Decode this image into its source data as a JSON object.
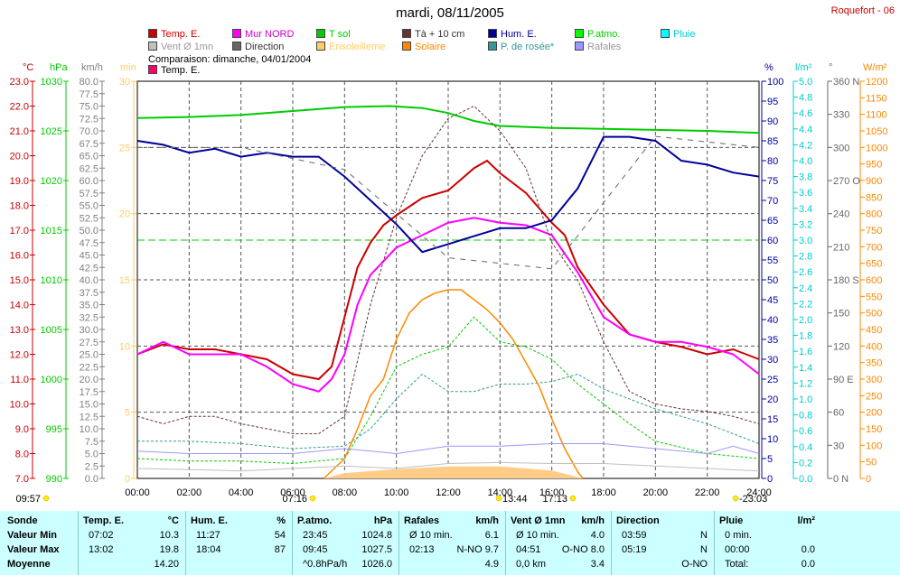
{
  "title": "mardi, 08/11/2005",
  "station": "Roquefort - 06",
  "legend": [
    {
      "label": "Temp. E.",
      "color": "#cc0000"
    },
    {
      "label": "Mur NORD",
      "color": "#ff00ff"
    },
    {
      "label": "T sol",
      "color": "#00cc00"
    },
    {
      "label": "Tà + 10 cm",
      "color": "#663333"
    },
    {
      "label": "Hum. E.",
      "color": "#000099"
    },
    {
      "label": "P.atmo.",
      "color": "#00ff00"
    },
    {
      "label": "Pluie",
      "color": "#00ffff"
    },
    {
      "label": "Vent Ø 1mn",
      "color": "#c0c0c0"
    },
    {
      "label": "Direction",
      "color": "#666666"
    },
    {
      "label": "Ensoleilleme",
      "color": "#ffcc66"
    },
    {
      "label": "Solaire",
      "color": "#ff8800"
    },
    {
      "label": "P. de rosée*",
      "color": "#339999"
    },
    {
      "label": "Rafales",
      "color": "#9999ff"
    }
  ],
  "comparison": {
    "text": "Comparaison: dimanche, 04/01/2004",
    "label": "Temp. E.",
    "color": "#ff0066"
  },
  "axis_units": {
    "tc": "°C",
    "hpa": "hPa",
    "kmh": "km/h",
    "min": "min",
    "pct": "%",
    "lm2": "l/m²",
    "deg": "°",
    "wm2": "W/m²"
  },
  "sun_marks": [
    "09:57",
    "07:16",
    "13:44",
    "17:13",
    "-23:03"
  ],
  "chart_data": {
    "type": "line",
    "x_ticks": [
      "00:00",
      "02:00",
      "04:00",
      "06:00",
      "08:00",
      "10:00",
      "12:00",
      "14:00",
      "16:00",
      "18:00",
      "20:00",
      "22:00",
      "24:00"
    ],
    "axes": {
      "temp_c": {
        "range": [
          7.0,
          23.0
        ],
        "ticks": [
          "23.0",
          "22.0",
          "21.0",
          "20.0",
          "19.0",
          "18.0",
          "17.0",
          "16.0",
          "15.0",
          "14.0",
          "13.0",
          "12.0",
          "11.0",
          "10.0",
          "9.0",
          "8.0",
          "7.0"
        ]
      },
      "pressure_hpa": {
        "range": [
          990,
          1030
        ],
        "ticks": [
          "1030",
          "1025",
          "1020",
          "1015",
          "1010",
          "1005",
          "1000",
          "995",
          "990"
        ]
      },
      "wind_kmh": {
        "range": [
          0.0,
          80.0
        ],
        "ticks": [
          "80.0",
          "77.5",
          "75.0",
          "72.5",
          "70.0",
          "67.5",
          "65.0",
          "62.5",
          "60.0",
          "57.5",
          "55.0",
          "52.5",
          "50.0",
          "47.5",
          "45.0",
          "42.5",
          "40.0",
          "37.5",
          "35.0",
          "32.5",
          "30.0",
          "27.5",
          "25.0",
          "22.5",
          "20.0",
          "17.5",
          "15.0",
          "12.5",
          "10.0",
          "7.5",
          "5.0",
          "2.5",
          "0.0"
        ]
      },
      "sunshine_min": {
        "range": [
          0,
          30
        ],
        "ticks": [
          "30",
          "25",
          "20",
          "15",
          "10",
          "5",
          "0"
        ]
      },
      "humidity_pct": {
        "range": [
          0,
          100
        ],
        "ticks": [
          "100",
          "95",
          "90",
          "85",
          "80",
          "75",
          "70",
          "65",
          "60",
          "55",
          "50",
          "45",
          "40",
          "35",
          "30",
          "25",
          "20",
          "15",
          "10",
          "5",
          "0"
        ]
      },
      "rain_lm2": {
        "range": [
          0.0,
          5.0
        ],
        "ticks": [
          "5.0",
          "4.8",
          "4.6",
          "4.4",
          "4.2",
          "4.0",
          "3.8",
          "3.6",
          "3.4",
          "3.2",
          "3.0",
          "2.8",
          "2.6",
          "2.4",
          "2.2",
          "2.0",
          "1.8",
          "1.6",
          "1.4",
          "1.2",
          "1.0",
          "0.8",
          "0.6",
          "0.4",
          "0.2",
          "0.0"
        ]
      },
      "direction_deg": {
        "range": [
          0,
          360
        ],
        "ticks": [
          "360 N",
          "330",
          "300",
          "270 O",
          "240",
          "210",
          "180 S",
          "150",
          "120",
          "90 E",
          "60",
          "30",
          "0 N"
        ]
      },
      "solar_wm2": {
        "range": [
          0,
          1200
        ],
        "ticks": [
          "1200",
          "1150",
          "1100",
          "1050",
          "1000",
          "950",
          "900",
          "850",
          "800",
          "750",
          "700",
          "650",
          "600",
          "550",
          "500",
          "450",
          "400",
          "350",
          "300",
          "250",
          "200",
          "150",
          "100",
          "50",
          "0"
        ]
      }
    },
    "series": [
      {
        "name": "Temp. E.",
        "axis": "temp_c",
        "color": "#cc0000",
        "x": [
          0,
          1,
          2,
          3,
          4,
          5,
          6,
          7,
          7.5,
          8,
          8.5,
          9,
          9.5,
          10,
          11,
          12,
          13,
          13.5,
          14,
          15,
          16,
          16.5,
          17,
          18,
          19,
          20,
          21,
          22,
          23,
          24
        ],
        "y": [
          12.0,
          12.4,
          12.2,
          12.2,
          12.0,
          11.8,
          11.2,
          11.0,
          11.5,
          13.5,
          15.5,
          16.5,
          17.2,
          17.6,
          18.3,
          18.6,
          19.5,
          19.8,
          19.3,
          18.5,
          17.3,
          16.8,
          15.5,
          14.0,
          12.8,
          12.5,
          12.3,
          12.0,
          12.2,
          11.8
        ]
      },
      {
        "name": "Mur NORD",
        "axis": "temp_c",
        "color": "#ff00ff",
        "x": [
          0,
          1,
          2,
          3,
          4,
          5,
          6,
          7,
          7.5,
          8,
          8.5,
          9,
          10,
          11,
          12,
          13,
          14,
          15,
          16,
          17,
          18,
          19,
          20,
          21,
          22,
          23,
          24
        ],
        "y": [
          12.0,
          12.5,
          12.0,
          12.0,
          12.0,
          11.5,
          10.8,
          10.5,
          11.0,
          12.0,
          14.0,
          15.2,
          16.3,
          16.8,
          17.3,
          17.5,
          17.3,
          17.2,
          16.8,
          15.3,
          13.5,
          12.8,
          12.5,
          12.5,
          12.3,
          12.0,
          11.2
        ]
      },
      {
        "name": "Hum. E.",
        "axis": "humidity_pct",
        "color": "#000099",
        "x": [
          0,
          1,
          2,
          3,
          4,
          5,
          6,
          7,
          8,
          9,
          10,
          11,
          12,
          13,
          14,
          15,
          16,
          17,
          18,
          19,
          20,
          21,
          22,
          23,
          24
        ],
        "y": [
          85,
          84,
          82,
          83,
          81,
          82,
          81,
          81,
          76,
          70,
          64,
          57,
          59,
          61,
          63,
          63,
          65,
          73,
          86,
          86,
          85,
          80,
          79,
          77,
          76
        ]
      },
      {
        "name": "P.atmo.",
        "axis": "pressure_hpa",
        "color": "#00cc00",
        "x": [
          0,
          2,
          4,
          6,
          8,
          9.75,
          11,
          12,
          13,
          14,
          16,
          18,
          20,
          22,
          24
        ],
        "y": [
          1026.3,
          1026.4,
          1026.6,
          1027.0,
          1027.4,
          1027.5,
          1027.3,
          1026.8,
          1026.0,
          1025.5,
          1025.3,
          1025.2,
          1025.1,
          1025.0,
          1024.8
        ]
      },
      {
        "name": "Tà + 10 cm",
        "axis": "temp_c",
        "color": "#663333",
        "x": [
          0,
          1,
          2,
          3,
          4,
          5,
          6,
          7,
          8,
          9,
          10,
          11,
          12,
          13,
          13.5,
          14,
          15,
          16,
          17,
          18,
          19,
          20,
          21,
          22,
          23,
          24
        ],
        "y": [
          9.5,
          9.2,
          9.5,
          9.5,
          9.2,
          9.0,
          8.8,
          8.8,
          9.5,
          14.0,
          17.5,
          20.0,
          21.5,
          22.0,
          21.5,
          21.0,
          19.5,
          16.5,
          15.0,
          12.5,
          10.5,
          10.0,
          9.8,
          9.7,
          9.5,
          9.2
        ]
      },
      {
        "name": "P. de rosée*",
        "axis": "temp_c",
        "color": "#339999",
        "x": [
          0,
          2,
          4,
          6,
          8,
          9,
          10,
          11,
          12,
          13,
          14,
          15,
          16,
          17,
          18,
          20,
          22,
          24
        ],
        "y": [
          8.5,
          8.5,
          8.4,
          8.2,
          8.3,
          9.0,
          10.2,
          11.2,
          10.5,
          10.5,
          10.8,
          10.8,
          10.9,
          11.2,
          10.6,
          9.8,
          9.2,
          8.4
        ]
      },
      {
        "name": "T sol",
        "axis": "temp_c",
        "color": "#00cc00",
        "x": [
          0,
          2,
          4,
          6,
          8,
          9,
          10,
          11,
          12,
          13,
          14,
          15,
          16,
          17,
          18,
          19,
          20,
          22,
          24
        ],
        "y": [
          7.8,
          7.7,
          7.7,
          7.6,
          7.8,
          9.5,
          11.5,
          12.0,
          12.3,
          13.5,
          12.5,
          12.3,
          11.8,
          10.8,
          10.0,
          9.2,
          8.5,
          8.0,
          7.8
        ]
      },
      {
        "name": "Solaire",
        "axis": "solar_wm2",
        "color": "#ff8800",
        "x": [
          7.2,
          8,
          8.5,
          9,
          9.5,
          10,
          10.5,
          11,
          11.5,
          12,
          12.5,
          13,
          13.5,
          14,
          14.5,
          15,
          15.5,
          16,
          16.5,
          17,
          17.2
        ],
        "y": [
          0,
          60,
          150,
          250,
          300,
          420,
          500,
          540,
          560,
          570,
          570,
          540,
          510,
          470,
          420,
          350,
          280,
          180,
          90,
          20,
          0
        ]
      },
      {
        "name": "Rafales",
        "axis": "wind_kmh",
        "color": "#9999ff",
        "x": [
          0,
          2,
          4,
          6,
          8,
          10,
          12,
          14,
          16,
          18,
          20,
          22,
          23,
          24
        ],
        "y": [
          5.5,
          5.0,
          5.0,
          5.0,
          6.0,
          5.0,
          6.5,
          6.5,
          7.0,
          7.0,
          6.0,
          5.0,
          6.5,
          5.0
        ]
      },
      {
        "name": "Vent Ø 1mn",
        "axis": "wind_kmh",
        "color": "#c0c0c0",
        "x": [
          0,
          2,
          4,
          6,
          8,
          10,
          12,
          14,
          16,
          18,
          20,
          22,
          24
        ],
        "y": [
          2.0,
          1.8,
          1.5,
          2.0,
          2.5,
          2.0,
          3.0,
          3.2,
          3.0,
          3.0,
          2.5,
          2.0,
          1.5
        ]
      },
      {
        "name": "Direction",
        "axis": "direction_deg",
        "color": "#666666",
        "x": [
          0,
          4,
          8,
          12,
          16,
          20,
          24
        ],
        "y": [
          300,
          300,
          280,
          200,
          190,
          310,
          300
        ]
      }
    ],
    "reference_line": {
      "axis": "temp_c",
      "value": 16.6,
      "color": "#00cc00"
    },
    "sunshine_area": {
      "axis": "sunshine_min",
      "color": "#ffcc88",
      "x": [
        7.2,
        8,
        10,
        12,
        14,
        16,
        17.2
      ],
      "y": [
        0,
        0.4,
        0.7,
        0.9,
        0.9,
        0.6,
        0
      ]
    }
  },
  "table": {
    "row_labels": [
      "Sonde",
      "Valeur Min",
      "Valeur Max",
      "Moyenne"
    ],
    "columns": [
      {
        "header": "Temp. E.",
        "unit": "°C",
        "rows": [
          [
            "07:02",
            "10.3"
          ],
          [
            "13:02",
            "19.8"
          ],
          [
            "",
            "14.20"
          ]
        ]
      },
      {
        "header": "Hum. E.",
        "unit": "%",
        "rows": [
          [
            "11:27",
            "54"
          ],
          [
            "18:04",
            "87"
          ],
          [
            "",
            ""
          ]
        ]
      },
      {
        "header": "P.atmo.",
        "unit": "hPa",
        "rows": [
          [
            "23:45",
            "1024.8"
          ],
          [
            "09:45",
            "1027.5"
          ],
          [
            "^0.8hPa/h",
            "1026.0"
          ]
        ]
      },
      {
        "header": "Rafales",
        "unit": "km/h",
        "rows": [
          [
            "Ø 10 min.",
            "6.1"
          ],
          [
            "02:13",
            "N-NO 9.7"
          ],
          [
            "",
            "4.9"
          ]
        ]
      },
      {
        "header": "Vent Ø 1mn",
        "unit": "km/h",
        "rows": [
          [
            "Ø 10 min.",
            "4.0"
          ],
          [
            "04:51",
            "O-NO 8.0"
          ],
          [
            "0,0 km",
            "3.4"
          ]
        ]
      },
      {
        "header": "Direction",
        "unit": "",
        "rows": [
          [
            "03:59",
            "N"
          ],
          [
            "05:19",
            "N"
          ],
          [
            "",
            "O-NO"
          ]
        ]
      },
      {
        "header": "Pluie",
        "unit": "l/m²",
        "rows": [
          [
            "0 min.",
            ""
          ],
          [
            "00:00",
            "0.0"
          ],
          [
            "Total:",
            "0.0"
          ]
        ]
      }
    ]
  }
}
